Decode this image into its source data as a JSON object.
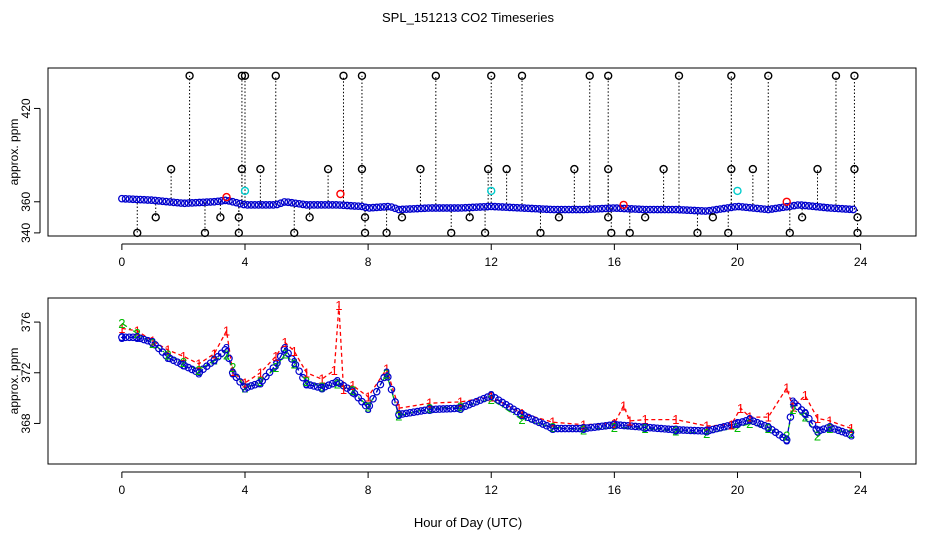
{
  "title": "SPL_151213  CO2 Timeseries",
  "xlabel": "Hour of Day (UTC)",
  "colors": {
    "black": "#000000",
    "red": "#ff0000",
    "blue": "#0000cd",
    "cyan": "#00cccc",
    "green": "#00bb00"
  },
  "chart_data": [
    {
      "type": "scatter",
      "title": "SPL_151213  CO2 Timeseries",
      "ylabel": "approx. ppm",
      "xlim": [
        -2.4,
        25.8
      ],
      "ylim": [
        338,
        446
      ],
      "xticks": [
        0,
        4,
        8,
        12,
        16,
        20,
        24
      ],
      "xtick_labels": [
        "0",
        "4",
        "8",
        "12",
        "16",
        "20",
        "24"
      ],
      "yticks": [
        340,
        360,
        420
      ],
      "ytick_labels": [
        "340",
        "360",
        "420"
      ],
      "outlier_spikes": [
        {
          "x": 0.5,
          "y": 340
        },
        {
          "x": 1.1,
          "y": 350
        },
        {
          "x": 1.6,
          "y": 381
        },
        {
          "x": 2.2,
          "y": 441
        },
        {
          "x": 2.7,
          "y": 340
        },
        {
          "x": 3.2,
          "y": 350
        },
        {
          "x": 3.8,
          "y": 340
        },
        {
          "x": 3.8,
          "y": 350
        },
        {
          "x": 3.9,
          "y": 381
        },
        {
          "x": 3.9,
          "y": 441
        },
        {
          "x": 4.0,
          "y": 441
        },
        {
          "x": 4.5,
          "y": 381
        },
        {
          "x": 5.0,
          "y": 441
        },
        {
          "x": 5.6,
          "y": 340
        },
        {
          "x": 6.1,
          "y": 350
        },
        {
          "x": 6.7,
          "y": 381
        },
        {
          "x": 7.2,
          "y": 441
        },
        {
          "x": 7.8,
          "y": 441
        },
        {
          "x": 7.8,
          "y": 381
        },
        {
          "x": 7.9,
          "y": 350
        },
        {
          "x": 7.9,
          "y": 340
        },
        {
          "x": 8.6,
          "y": 340
        },
        {
          "x": 9.1,
          "y": 350
        },
        {
          "x": 9.7,
          "y": 381
        },
        {
          "x": 10.2,
          "y": 441
        },
        {
          "x": 10.7,
          "y": 340
        },
        {
          "x": 11.3,
          "y": 350
        },
        {
          "x": 11.8,
          "y": 340
        },
        {
          "x": 11.9,
          "y": 381
        },
        {
          "x": 12.0,
          "y": 441
        },
        {
          "x": 12.5,
          "y": 381
        },
        {
          "x": 13.0,
          "y": 441
        },
        {
          "x": 13.6,
          "y": 340
        },
        {
          "x": 14.2,
          "y": 350
        },
        {
          "x": 14.7,
          "y": 381
        },
        {
          "x": 15.2,
          "y": 441
        },
        {
          "x": 15.8,
          "y": 441
        },
        {
          "x": 15.8,
          "y": 381
        },
        {
          "x": 15.8,
          "y": 350
        },
        {
          "x": 15.9,
          "y": 340
        },
        {
          "x": 16.5,
          "y": 340
        },
        {
          "x": 17.0,
          "y": 350
        },
        {
          "x": 17.6,
          "y": 381
        },
        {
          "x": 18.1,
          "y": 441
        },
        {
          "x": 18.7,
          "y": 340
        },
        {
          "x": 19.2,
          "y": 350
        },
        {
          "x": 19.7,
          "y": 340
        },
        {
          "x": 19.8,
          "y": 381
        },
        {
          "x": 19.8,
          "y": 441
        },
        {
          "x": 20.5,
          "y": 381
        },
        {
          "x": 21.0,
          "y": 441
        },
        {
          "x": 21.7,
          "y": 340
        },
        {
          "x": 22.1,
          "y": 350
        },
        {
          "x": 22.6,
          "y": 381
        },
        {
          "x": 23.2,
          "y": 441
        },
        {
          "x": 23.8,
          "y": 441
        },
        {
          "x": 23.8,
          "y": 381
        },
        {
          "x": 23.9,
          "y": 350
        },
        {
          "x": 23.9,
          "y": 340
        }
      ],
      "cyan_points": [
        {
          "x": 4.0,
          "y": 367
        },
        {
          "x": 12.0,
          "y": 367
        },
        {
          "x": 20.0,
          "y": 367
        }
      ],
      "red_points": [
        {
          "x": 3.4,
          "y": 363
        },
        {
          "x": 7.1,
          "y": 365
        },
        {
          "x": 16.3,
          "y": 358
        },
        {
          "x": 21.6,
          "y": 360
        }
      ],
      "blue_trace": {
        "x": [
          0,
          1,
          2,
          3,
          3.4,
          4,
          5,
          5.3,
          6,
          7,
          7.8,
          8,
          8.7,
          9,
          10,
          11,
          12,
          13,
          14,
          15,
          16,
          17,
          18,
          19,
          20,
          21,
          22,
          23,
          23.8
        ],
        "y": [
          362,
          361,
          359,
          360,
          361,
          358,
          358,
          360,
          358,
          358,
          357,
          356,
          357,
          355,
          356,
          356,
          357,
          356,
          355,
          355,
          356,
          355,
          355,
          354,
          357,
          355,
          358,
          356,
          355
        ]
      }
    },
    {
      "type": "line",
      "ylabel": "approx. ppm",
      "xlim": [
        -2.4,
        25.8
      ],
      "ylim": [
        364.8,
        377.9
      ],
      "xticks": [
        0,
        4,
        8,
        12,
        16,
        20,
        24
      ],
      "xtick_labels": [
        "0",
        "4",
        "8",
        "12",
        "16",
        "20",
        "24"
      ],
      "yticks": [
        368,
        372,
        376
      ],
      "ytick_labels": [
        "368",
        "372",
        "376"
      ],
      "series": [
        {
          "name": "1",
          "color": "red",
          "x": [
            0,
            0.5,
            1,
            1.5,
            2,
            2.5,
            3,
            3.4,
            3.6,
            4,
            4.5,
            5,
            5.3,
            5.6,
            6,
            6.5,
            6.9,
            7.05,
            7.2,
            7.5,
            8,
            8.6,
            9,
            10,
            11,
            12,
            13,
            14,
            15,
            16,
            16.3,
            16.5,
            17,
            18,
            19,
            19.8,
            20.1,
            20.4,
            21,
            21.6,
            21.8,
            22.2,
            22.6,
            23,
            23.7
          ],
          "y": [
            375.5,
            375.3,
            374.5,
            373.8,
            373.3,
            372.7,
            373.5,
            375.3,
            372.1,
            371.2,
            372.0,
            373.3,
            374.4,
            373.7,
            372.0,
            371.5,
            372.2,
            377.3,
            370.7,
            371.0,
            370.1,
            372.3,
            369.2,
            369.6,
            369.7,
            370.1,
            368.8,
            368.1,
            367.9,
            368.0,
            369.4,
            368.2,
            368.3,
            368.3,
            367.8,
            367.9,
            369.2,
            368.5,
            368.5,
            370.8,
            369.3,
            370.2,
            368.4,
            368.2,
            367.6
          ]
        },
        {
          "name": "2",
          "color": "green",
          "x": [
            0,
            0.5,
            1,
            1.5,
            2,
            2.5,
            3,
            3.4,
            3.6,
            4,
            4.5,
            5,
            5.3,
            5.6,
            6,
            6.5,
            7,
            7.5,
            8,
            8.6,
            9,
            10,
            11,
            12,
            13,
            14,
            15,
            16,
            17,
            18,
            19,
            20,
            20.4,
            21,
            21.6,
            21.8,
            22.2,
            22.6,
            23,
            23.7
          ],
          "y": [
            375.9,
            375.1,
            374.3,
            373.4,
            372.8,
            372.2,
            373.0,
            373.4,
            372.4,
            370.8,
            371.3,
            372.4,
            373.5,
            372.7,
            371.3,
            370.9,
            371.1,
            370.6,
            369.3,
            371.9,
            368.6,
            369.2,
            369.3,
            369.9,
            368.3,
            367.7,
            367.5,
            367.7,
            367.6,
            367.4,
            367.2,
            367.7,
            368.0,
            367.6,
            367.0,
            369.1,
            368.5,
            367.0,
            367.6,
            367.2
          ]
        },
        {
          "name": "3",
          "color": "blue",
          "x": [
            0,
            0.5,
            1,
            1.5,
            2,
            2.5,
            3,
            3.4,
            3.6,
            4,
            4.5,
            5,
            5.3,
            5.6,
            6,
            6.5,
            7,
            7.5,
            8,
            8.6,
            9,
            10,
            11,
            12,
            13,
            14,
            15,
            16,
            17,
            18,
            19,
            20,
            20.4,
            21,
            21.6,
            21.8,
            22.2,
            22.6,
            23,
            23.7
          ],
          "y": [
            374.8,
            374.8,
            374.4,
            373.2,
            372.6,
            372.0,
            373.0,
            373.9,
            372.0,
            370.8,
            371.2,
            372.6,
            373.9,
            372.8,
            371.1,
            370.8,
            371.3,
            370.5,
            369.2,
            372.0,
            368.7,
            369.1,
            369.2,
            370.2,
            368.7,
            367.6,
            367.6,
            367.9,
            367.7,
            367.5,
            367.4,
            368.0,
            368.3,
            367.7,
            366.7,
            369.7,
            368.8,
            367.4,
            367.7,
            367.1
          ]
        }
      ]
    }
  ]
}
